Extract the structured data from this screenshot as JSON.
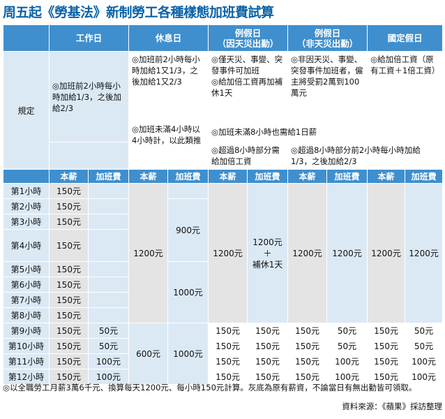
{
  "title": "周五起《勞基法》新制勞工各種樣態加班費試算",
  "columns": {
    "workday": "工作日",
    "restday": "休息日",
    "holiday_disaster": [
      "例假日",
      "（因天災出勤）"
    ],
    "holiday_nondisaster": [
      "例假日",
      "（非天災出勤）"
    ],
    "national": "國定假日"
  },
  "rule_label": "規定",
  "rules": {
    "workday": "◎加班前2小時每小時加給1/3，之後加給2/3",
    "restday_1": "◎加班前2小時每小時加給1又1/3，之後加給1又2/3",
    "restday_2": "◎加班未滿4小時以4小時計，以此類推",
    "disaster_1": "◎僅天災、事變、突發事件可加班",
    "disaster_2": "◎給加倍工資再加補休1天",
    "nondisaster_1": "◎非因天災、事變、突發事件加班者，僱主將受罰2萬到100萬元",
    "national_1": "◎給加倍工資（原有工資＋1倍工資）",
    "shared_1": "◎加班未滿8小時也需給1日薪",
    "disaster_3": "◎超過8小時部分需給加倍工資",
    "shared_2": "◎超過8小時部分前2小時每小時加給1/3，之後加給2/3"
  },
  "subheaders": {
    "base": "本薪",
    "ot": "加班費"
  },
  "hours": [
    "第1小時",
    "第2小時",
    "第3小時",
    "第4小時",
    "第5小時",
    "第6小時",
    "第7小時",
    "第8小時",
    "第9小時",
    "第10小時",
    "第11小時",
    "第12小時"
  ],
  "values": {
    "v150": "150元",
    "v50": "50元",
    "v100": "100元",
    "v1200": "1200元",
    "v900": "900元",
    "v1000": "1000元",
    "v600": "600元",
    "comp_1": "1200元",
    "comp_2": "＋",
    "comp_3": "補休1天"
  },
  "footer": {
    "note": "◎以全職勞工月薪3萬6千元、換算每天1200元、每小時150元計算。灰底為原有薪資，不論當日有無出勤皆可領取。",
    "source": "資料來源：《蘋果》採訪整理"
  },
  "colors": {
    "header": "#3f8fce",
    "title": "#0a63a8",
    "blue_cell": "#dbe9f5",
    "grey_cell": "#e4e4e4"
  }
}
